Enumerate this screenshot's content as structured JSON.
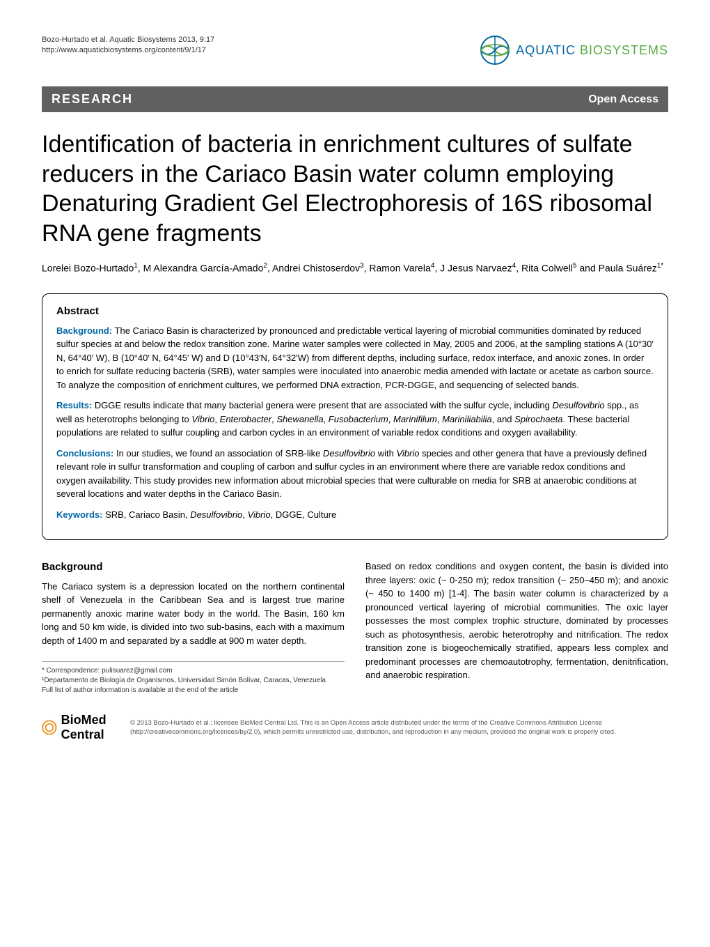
{
  "header": {
    "citation_line1": "Bozo-Hurtado et al. Aquatic Biosystems 2013, 9:17",
    "citation_line2": "http://www.aquaticbiosystems.org/content/9/1/17",
    "journal_name_part1": "AQUATIC",
    "journal_name_part2": "BIOSYSTEMS"
  },
  "section_bar": {
    "left": "RESEARCH",
    "right": "Open Access"
  },
  "title": "Identification of bacteria in enrichment cultures of sulfate reducers in the Cariaco Basin water column employing Denaturing Gradient Gel Electrophoresis of 16S ribosomal RNA gene fragments",
  "authors_html": "Lorelei Bozo-Hurtado<sup>1</sup>, M Alexandra García-Amado<sup>2</sup>, Andrei Chistoserdov<sup>3</sup>, Ramon Varela<sup>4</sup>, J Jesus Narvaez<sup>4</sup>, Rita Colwell<sup>5</sup> and Paula Suárez<sup>1*</sup>",
  "abstract": {
    "heading": "Abstract",
    "background_label": "Background:",
    "background_text": " The Cariaco Basin is characterized by pronounced and predictable vertical layering of microbial communities dominated by reduced sulfur species at and below the redox transition zone. Marine water samples were collected in May, 2005 and 2006, at the sampling stations A (10°30′ N, 64°40′ W), B (10°40′ N, 64°45′ W) and D (10°43′N, 64°32′W) from different depths, including surface, redox interface, and anoxic zones. In order to enrich for sulfate reducing bacteria (SRB), water samples were inoculated into anaerobic media amended with lactate or acetate as carbon source. To analyze the composition of enrichment cultures, we performed DNA extraction, PCR-DGGE, and sequencing of selected bands.",
    "results_label": "Results:",
    "results_text": " DGGE results indicate that many bacterial genera were present that are associated with the sulfur cycle, including Desulfovibrio spp., as well as heterotrophs belonging to Vibrio, Enterobacter, Shewanella, Fusobacterium, Marinifilum, Mariniliabilia, and Spirochaeta. These bacterial populations are related to sulfur coupling and carbon cycles in an environment of variable redox conditions and oxygen availability.",
    "conclusions_label": "Conclusions:",
    "conclusions_text": " In our studies, we found an association of SRB-like Desulfovibrio with Vibrio species and other genera that have a previously defined relevant role in sulfur transformation and coupling of carbon and sulfur cycles in an environment where there are variable redox conditions and oxygen availability. This study provides new information about microbial species that were culturable on media for SRB at anaerobic conditions at several locations and water depths in the Cariaco Basin.",
    "keywords_label": "Keywords:",
    "keywords_text": " SRB, Cariaco Basin, Desulfovibrio, Vibrio, DGGE, Culture"
  },
  "body": {
    "background_heading": "Background",
    "col1_text": "The Cariaco system is a depression located on the northern continental shelf of Venezuela in the Caribbean Sea and is largest true marine permanently anoxic marine water body in the world. The Basin, 160 km long and 50 km wide, is divided into two sub-basins, each with a maximum depth of 1400 m and separated by a saddle at 900 m water depth.",
    "col2_text": "Based on redox conditions and oxygen content, the basin is divided into three layers: oxic (~ 0-250 m); redox transition (~ 250–450 m); and anoxic (~ 450 to 1400 m) [1-4]. The basin water column is characterized by a pronounced vertical layering of microbial communities. The oxic layer possesses the most complex trophic structure, dominated by processes such as photosynthesis, aerobic heterotrophy and nitrification. The redox transition zone is biogeochemically stratified, appears less complex and predominant processes are chemoautotrophy, fermentation, denitrification, and anaerobic respiration."
  },
  "footnotes": {
    "correspondence": "* Correspondence: pulisuarez@gmail.com",
    "affiliation": "¹Departamento de Biología de Organismos, Universidad Simón Bolívar, Caracas, Venezuela",
    "full_list": "Full list of author information is available at the end of the article"
  },
  "footer": {
    "bmc_text": "BioMed Central",
    "license": "© 2013 Bozo-Hurtado et al.; licensee BioMed Central Ltd. This is an Open Access article distributed under the terms of the Creative Commons Attribution License (http://creativecommons.org/licenses/by/2.0), which permits unrestricted use, distribution, and reproduction in any medium, provided the original work is properly cited."
  },
  "colors": {
    "aquatic_blue": "#0066a4",
    "biosystems_green": "#56aa3e",
    "section_bar_bg": "#606060",
    "text_black": "#000000",
    "bg_white": "#ffffff",
    "label_blue": "#0066a4"
  }
}
